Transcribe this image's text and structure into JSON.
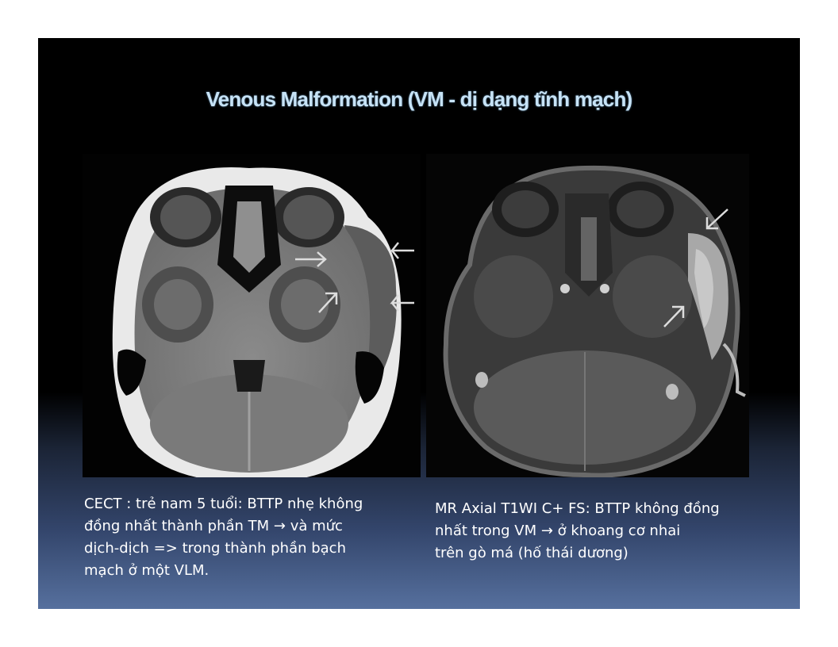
{
  "slide": {
    "title": "Venous Malformation (VM - dị dạng tĩnh mạch)"
  },
  "images": {
    "left": {
      "icon": "ct-axial-scan-image"
    },
    "right": {
      "icon": "mr-axial-scan-image"
    }
  },
  "captions": {
    "left": "CECT : trẻ nam 5 tuổi: BTTP nhẹ không\nđồng nhất thành phần TM → và mức\ndịch-dịch => trong thành phần bạch\nmạch ở một  VLM.",
    "right": "MR Axial T1WI C+ FS: BTTP không đồng\nnhất trong VM → ở khoang cơ nhai\ntrên gò má (hố thái dương)"
  }
}
